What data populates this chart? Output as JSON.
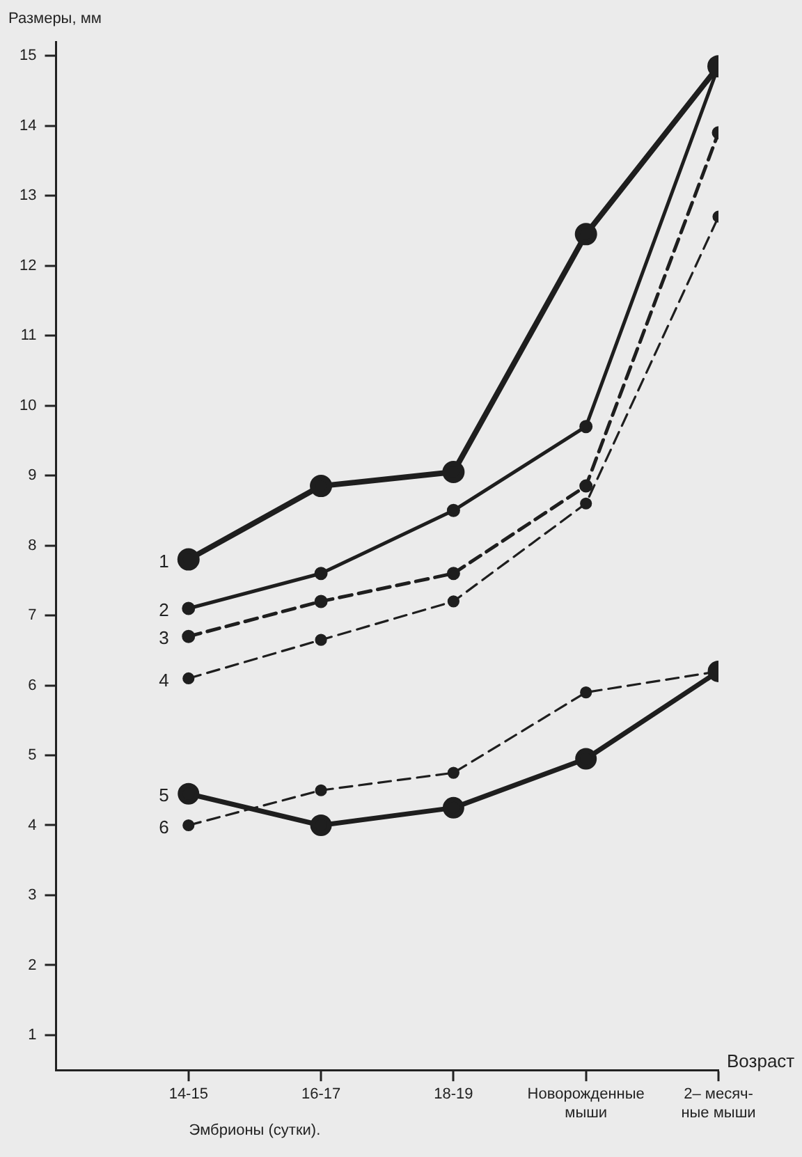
{
  "chart_data": {
    "type": "line",
    "ylabel": "Размеры, мм",
    "xlabel": "Возраст",
    "annotations": [
      "Эмбрионы (сутки)."
    ],
    "categories": [
      "14-15",
      "16-17",
      "18-19",
      "Новорожденные\nмыши",
      "2– месяч-\nные мыши"
    ],
    "ylim": [
      0.5,
      15.2
    ],
    "yticks": [
      1,
      2,
      3,
      4,
      5,
      6,
      7,
      8,
      9,
      10,
      11,
      12,
      13,
      14,
      15
    ],
    "grid": false,
    "legend": false,
    "marker": "circle",
    "series": [
      {
        "name": "1",
        "color": "#1e1e1e",
        "line_style": "solid",
        "values": [
          7.8,
          8.85,
          9.05,
          12.45,
          14.85
        ]
      },
      {
        "name": "2",
        "color": "#1e1e1e",
        "line_style": "solid",
        "values": [
          7.1,
          7.6,
          8.5,
          9.7,
          14.85
        ]
      },
      {
        "name": "3",
        "color": "#1e1e1e",
        "line_style": "dashed",
        "values": [
          6.7,
          7.2,
          7.6,
          8.85,
          13.9
        ]
      },
      {
        "name": "4",
        "color": "#1e1e1e",
        "line_style": "dashed",
        "values": [
          6.1,
          6.65,
          7.2,
          8.6,
          12.7
        ]
      },
      {
        "name": "5",
        "color": "#1e1e1e",
        "line_style": "solid",
        "values": [
          4.45,
          4.0,
          4.25,
          4.95,
          6.2
        ]
      },
      {
        "name": "6",
        "color": "#1e1e1e",
        "line_style": "dashed",
        "values": [
          4.0,
          4.5,
          4.75,
          5.9,
          6.2
        ]
      }
    ]
  }
}
